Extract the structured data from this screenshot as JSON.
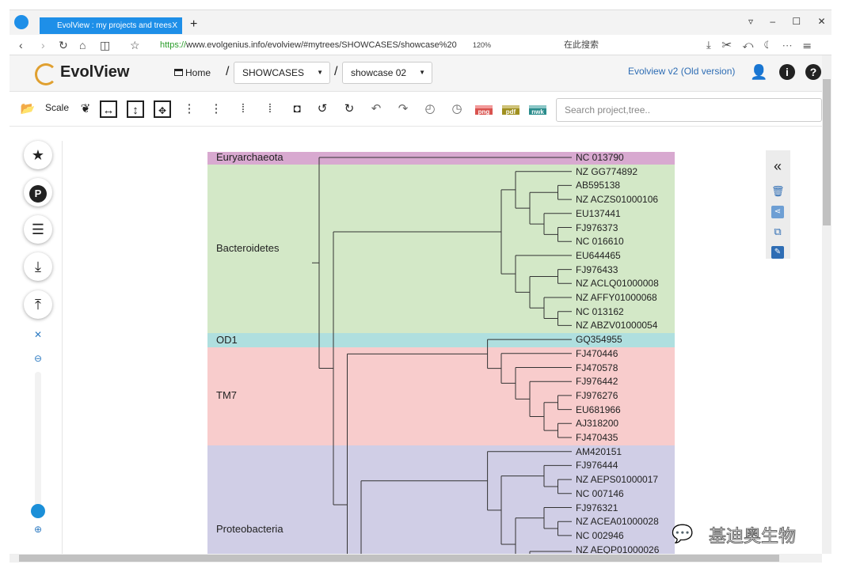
{
  "browser": {
    "tab_title": "EvolView : my projects and trees",
    "tab_close": "X",
    "new_tab": "+",
    "url_scheme": "https://",
    "url_rest": "www.evolgenius.info/evolview/#mytrees/SHOWCASES/showcase%20",
    "zoom": "120%",
    "search_engine": "在此搜索",
    "window_controls": [
      "▿",
      "–",
      "☐",
      "✕"
    ]
  },
  "header": {
    "logo": "EvolView",
    "home": "Home",
    "sep": "/",
    "project": "SHOWCASES",
    "tree": "showcase 02",
    "old_version": "Evolview v2 (Old version)"
  },
  "toolbar": {
    "scale": "Scale",
    "png": "png",
    "pdf": "pdf",
    "nwk": "nwk",
    "search_placeholder": "Search project,tree.."
  },
  "tree": {
    "groups": [
      {
        "name": "Euryarchaeota",
        "color": "#d8a9d0"
      },
      {
        "name": "Bacteroidetes",
        "color": "#d3e8c7"
      },
      {
        "name": "OD1",
        "color": "#afdfdf"
      },
      {
        "name": "TM7",
        "color": "#f8cccc"
      },
      {
        "name": "Proteobacteria",
        "color": "#d0cee6"
      }
    ],
    "leaves": [
      "NC 013790",
      "NZ GG774892",
      "AB595138",
      "NZ ACZS01000106",
      "EU137441",
      "FJ976373",
      "NC 016610",
      "EU644465",
      "FJ976433",
      "NZ ACLQ01000008",
      "NZ AFFY01000068",
      "NC 013162",
      "NZ ABZV01000054",
      "GQ354955",
      "FJ470446",
      "FJ470578",
      "FJ976442",
      "FJ976276",
      "EU681966",
      "AJ318200",
      "FJ470435",
      "AM420151",
      "FJ976444",
      "NZ AEPS01000017",
      "NC 007146",
      "FJ976321",
      "NZ ACEA01000028",
      "NC 002946",
      "NZ AEQP01000026"
    ]
  },
  "watermark": "基迪奥生物"
}
